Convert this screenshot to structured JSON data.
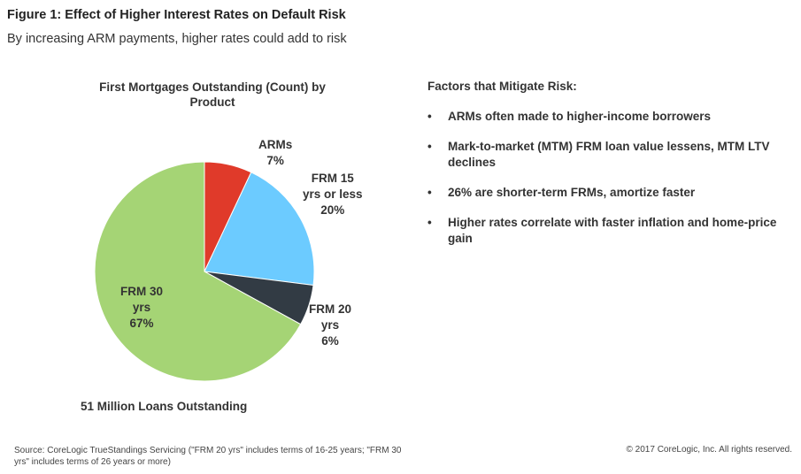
{
  "figure": {
    "title": "Figure 1: Effect of Higher Interest Rates on Default Risk",
    "subtitle": "By increasing ARM payments, higher rates could add to risk"
  },
  "chart_data": {
    "type": "pie",
    "title": "First Mortgages Outstanding (Count) by Product",
    "slices": [
      {
        "name": "ARMs",
        "label_lines": [
          "ARMs",
          "7%"
        ],
        "value": 7,
        "color": "#e03a2a"
      },
      {
        "name": "FRM 15 yrs or less",
        "label_lines": [
          "FRM 15",
          "yrs or less",
          "20%"
        ],
        "value": 20,
        "color": "#6ccbff"
      },
      {
        "name": "FRM 20 yrs",
        "label_lines": [
          "FRM 20",
          "yrs",
          "6%"
        ],
        "value": 6,
        "color": "#323b44"
      },
      {
        "name": "FRM 30 yrs",
        "label_lines": [
          "FRM 30",
          "yrs",
          "67%"
        ],
        "value": 67,
        "color": "#a5d475"
      }
    ],
    "total_label": "51 Million Loans Outstanding"
  },
  "factors": {
    "heading": "Factors that Mitigate Risk:",
    "bullet": "•",
    "items": [
      "ARMs often made to higher-income borrowers",
      "Mark-to-market (MTM) FRM loan value lessens, MTM LTV declines",
      "26% are shorter-term FRMs, amortize faster",
      "Higher rates correlate with faster inflation and home-price gain"
    ]
  },
  "footer": {
    "source": "Source: CoreLogic TrueStandings Servicing (\"FRM 20 yrs\" includes terms of 16-25 years; \"FRM 30 yrs\" includes terms of 26 years or more)",
    "copyright": "© 2017 CoreLogic, Inc. All rights reserved."
  }
}
